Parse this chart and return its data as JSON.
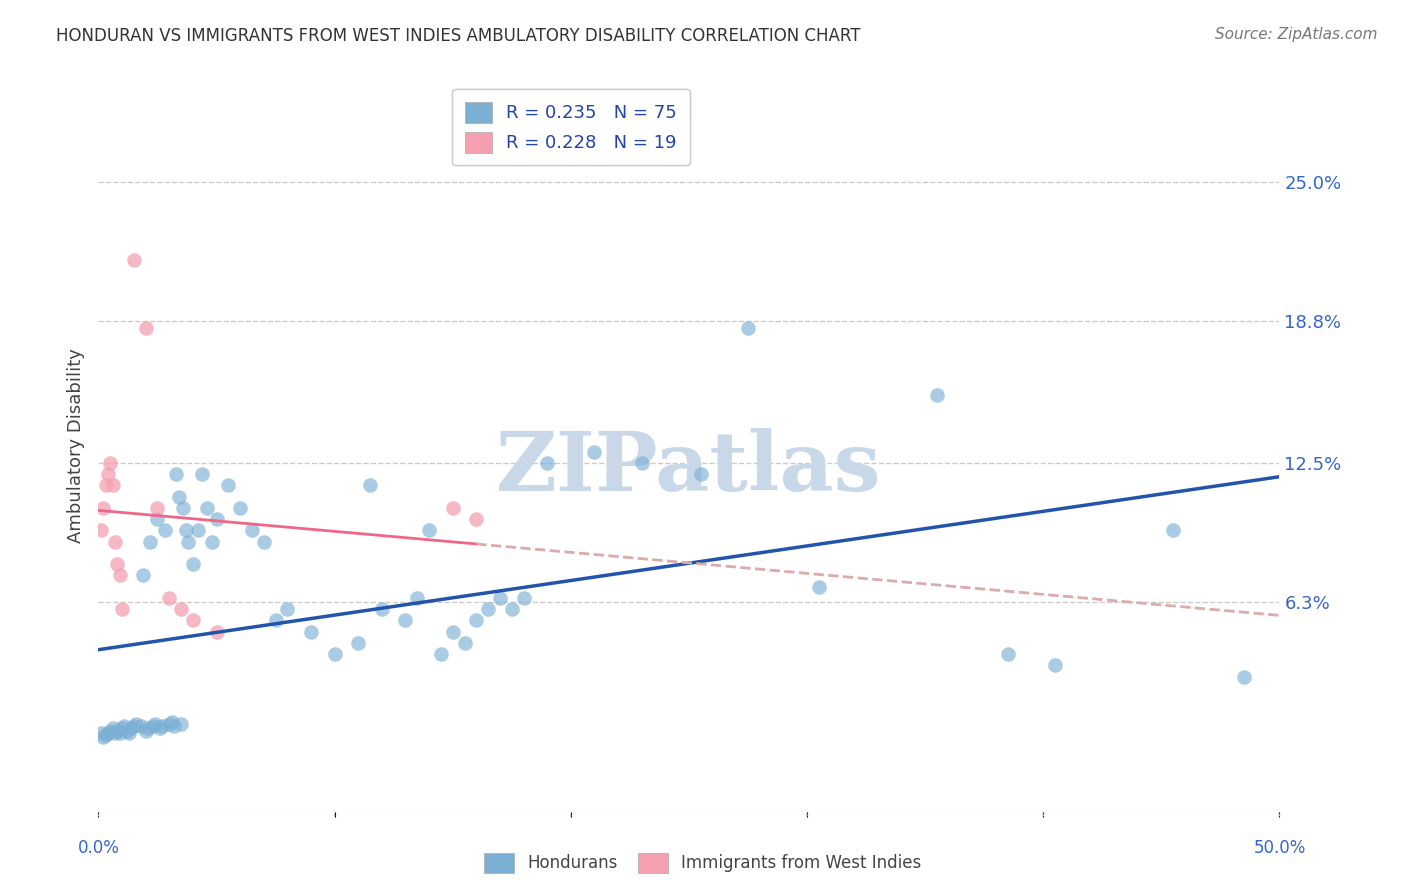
{
  "title": "HONDURAN VS IMMIGRANTS FROM WEST INDIES AMBULATORY DISABILITY CORRELATION CHART",
  "source": "Source: ZipAtlas.com",
  "ylabel": "Ambulatory Disability",
  "ytick_values": [
    0.063,
    0.125,
    0.188,
    0.25
  ],
  "ytick_labels": [
    "6.3%",
    "12.5%",
    "18.8%",
    "25.0%"
  ],
  "xlim": [
    0.0,
    0.5
  ],
  "ylim": [
    -0.03,
    0.295
  ],
  "blue_color": "#7BAFD4",
  "pink_color": "#F4A0B0",
  "blue_line_color": "#2255AA",
  "pink_line_color": "#EE6688",
  "pink_dash_color": "#DDAAAA",
  "watermark": "ZIPatlas",
  "watermark_color": "#C8D8E8",
  "background_color": "#FFFFFF",
  "grid_color": "#CCCCCC",
  "honduran_x": [
    0.001,
    0.002,
    0.003,
    0.004,
    0.005,
    0.006,
    0.007,
    0.008,
    0.009,
    0.01,
    0.011,
    0.012,
    0.013,
    0.014,
    0.015,
    0.016,
    0.018,
    0.019,
    0.02,
    0.021,
    0.022,
    0.023,
    0.024,
    0.025,
    0.026,
    0.027,
    0.028,
    0.03,
    0.031,
    0.032,
    0.033,
    0.034,
    0.035,
    0.036,
    0.037,
    0.038,
    0.04,
    0.042,
    0.044,
    0.046,
    0.048,
    0.05,
    0.055,
    0.06,
    0.065,
    0.07,
    0.075,
    0.08,
    0.09,
    0.1,
    0.11,
    0.115,
    0.12,
    0.13,
    0.135,
    0.14,
    0.145,
    0.15,
    0.155,
    0.16,
    0.165,
    0.17,
    0.175,
    0.18,
    0.19,
    0.21,
    0.23,
    0.255,
    0.275,
    0.305,
    0.355,
    0.385,
    0.405,
    0.455,
    0.485
  ],
  "honduran_y": [
    0.005,
    0.003,
    0.004,
    0.005,
    0.006,
    0.007,
    0.005,
    0.006,
    0.005,
    0.007,
    0.008,
    0.006,
    0.005,
    0.007,
    0.008,
    0.009,
    0.008,
    0.075,
    0.006,
    0.007,
    0.09,
    0.008,
    0.009,
    0.1,
    0.007,
    0.008,
    0.095,
    0.009,
    0.01,
    0.008,
    0.12,
    0.11,
    0.009,
    0.105,
    0.095,
    0.09,
    0.08,
    0.095,
    0.12,
    0.105,
    0.09,
    0.1,
    0.115,
    0.105,
    0.095,
    0.09,
    0.055,
    0.06,
    0.05,
    0.04,
    0.045,
    0.115,
    0.06,
    0.055,
    0.065,
    0.095,
    0.04,
    0.05,
    0.045,
    0.055,
    0.06,
    0.065,
    0.06,
    0.065,
    0.125,
    0.13,
    0.125,
    0.12,
    0.185,
    0.07,
    0.155,
    0.04,
    0.035,
    0.095,
    0.03
  ],
  "wi_x": [
    0.001,
    0.002,
    0.003,
    0.004,
    0.005,
    0.006,
    0.007,
    0.008,
    0.009,
    0.01,
    0.015,
    0.02,
    0.025,
    0.03,
    0.035,
    0.04,
    0.05,
    0.15,
    0.16
  ],
  "wi_y": [
    0.095,
    0.105,
    0.115,
    0.12,
    0.125,
    0.115,
    0.09,
    0.08,
    0.075,
    0.06,
    0.215,
    0.185,
    0.105,
    0.065,
    0.06,
    0.055,
    0.05,
    0.105,
    0.1
  ]
}
